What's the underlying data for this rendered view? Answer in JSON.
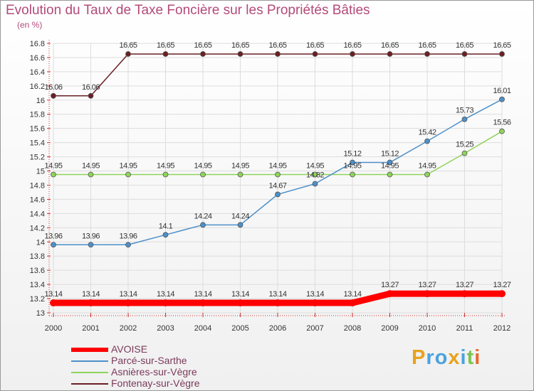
{
  "chart_data": {
    "type": "line",
    "title": "Evolution du Taux de Taxe Foncière sur les Propriétés Bâties",
    "ylabel": "(en %)",
    "x": [
      "2000",
      "2001",
      "2002",
      "2003",
      "2004",
      "2005",
      "2006",
      "2007",
      "2008",
      "2009",
      "2010",
      "2011",
      "2012"
    ],
    "ylim": [
      13,
      16.8
    ],
    "yticks": [
      "13",
      "13.2",
      "13.4",
      "13.6",
      "13.8",
      "14",
      "14.2",
      "14.4",
      "14.6",
      "14.8",
      "15",
      "15.2",
      "15.4",
      "15.6",
      "15.8",
      "16",
      "16.2",
      "16.4",
      "16.6",
      "16.8"
    ],
    "series": [
      {
        "name": "AVOISE",
        "color": "#ff0000",
        "values": [
          13.14,
          13.14,
          13.14,
          13.14,
          13.14,
          13.14,
          13.14,
          13.14,
          13.14,
          13.27,
          13.27,
          13.27,
          13.27
        ],
        "labels": [
          "13.14",
          "13.14",
          "13.14",
          "13.14",
          "13.14",
          "13.14",
          "13.14",
          "13.14",
          "13.14",
          "13.27",
          "13.27",
          "13.27",
          "13.27"
        ]
      },
      {
        "name": "Parcé-sur-Sarthe",
        "color": "#4d90c9",
        "values": [
          13.96,
          13.96,
          13.96,
          14.1,
          14.24,
          14.24,
          14.67,
          14.82,
          15.12,
          15.12,
          15.42,
          15.73,
          16.01
        ],
        "labels": [
          "13.96",
          "13.96",
          "13.96",
          "14.1",
          "14.24",
          "14.24",
          "14.67",
          "14.82",
          "15.12",
          "15.12",
          "15.42",
          "15.73",
          "16.01"
        ]
      },
      {
        "name": "Asnières-sur-Vègre",
        "color": "#8fd45a",
        "values": [
          14.95,
          14.95,
          14.95,
          14.95,
          14.95,
          14.95,
          14.95,
          14.95,
          14.95,
          14.95,
          14.95,
          15.25,
          15.56
        ],
        "labels": [
          "14.95",
          "14.95",
          "14.95",
          "14.95",
          "14.95",
          "14.95",
          "14.95",
          "14.95",
          "14.95",
          "14.95",
          "14.95",
          "15.25",
          "15.56"
        ]
      },
      {
        "name": "Fontenay-sur-Vègre",
        "color": "#6b1f24",
        "values": [
          16.06,
          16.06,
          16.65,
          16.65,
          16.65,
          16.65,
          16.65,
          16.65,
          16.65,
          16.65,
          16.65,
          16.65,
          16.65
        ],
        "labels": [
          "16.06",
          "16.06",
          "16.65",
          "16.65",
          "16.65",
          "16.65",
          "16.65",
          "16.65",
          "16.65",
          "16.65",
          "16.65",
          "16.65",
          "16.65"
        ]
      }
    ]
  },
  "logo": {
    "letters": [
      "P",
      "r",
      "o",
      "x",
      "i",
      "t",
      "i"
    ],
    "colors": [
      "#e8a21f",
      "#4aa3df",
      "#4aa3df",
      "#e8a21f",
      "#4aa3df",
      "#7cc34f",
      "#e86a2f"
    ]
  }
}
